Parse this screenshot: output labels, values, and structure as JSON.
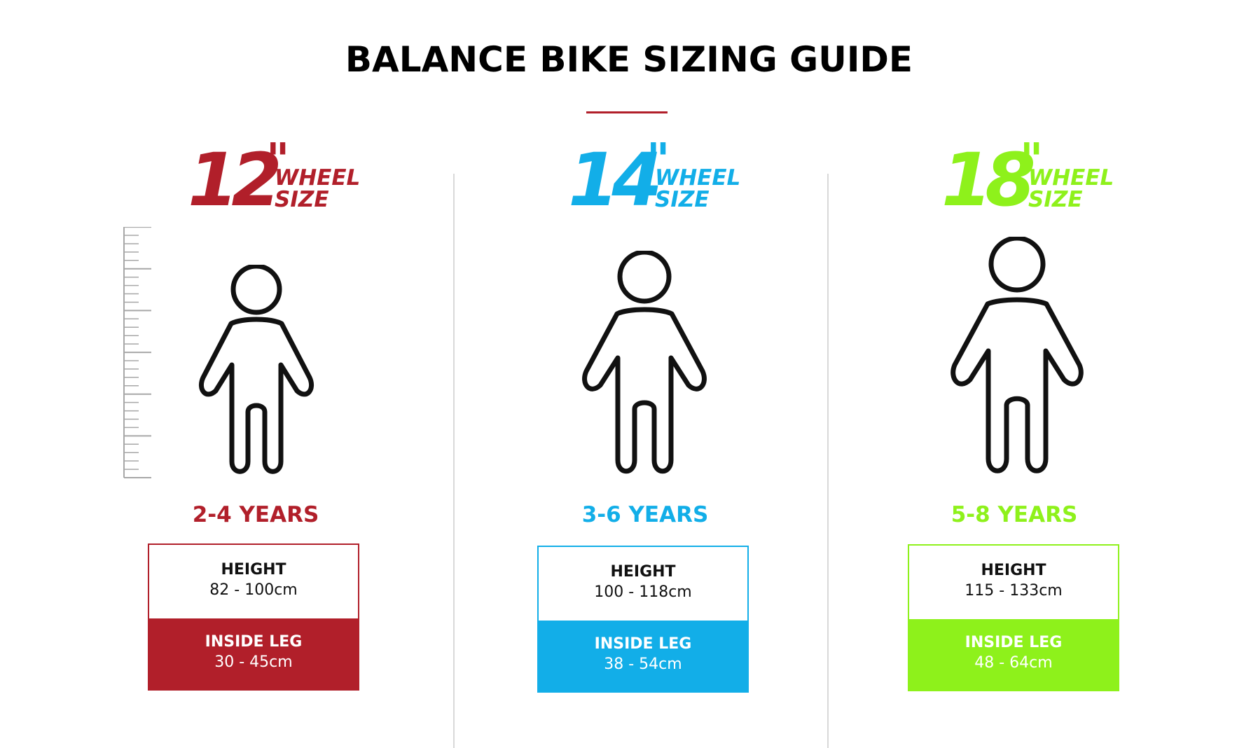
{
  "title": "BALANCE BIKE SIZING GUIDE",
  "colors": {
    "red": "#b11f2a",
    "blue": "#12aee8",
    "green": "#8ef11b",
    "divider": "#d9d9d9",
    "ruler": "#a7a7a7"
  },
  "icons": {
    "figure": "child-figure-icon",
    "ruler": "height-ruler-icon"
  },
  "sizes": [
    {
      "wheel_number": "12",
      "wheel_mark": "\"",
      "wheel_label_1": "WHEEL",
      "wheel_label_2": "SIZE",
      "age": "2-4 YEARS",
      "height_label": "HEIGHT",
      "height_value": "82 - 100cm",
      "inside_leg_label": "INSIDE LEG",
      "inside_leg_value": "30 - 45cm"
    },
    {
      "wheel_number": "14",
      "wheel_mark": "\"",
      "wheel_label_1": "WHEEL",
      "wheel_label_2": "SIZE",
      "age": "3-6 YEARS",
      "height_label": "HEIGHT",
      "height_value": "100 - 118cm",
      "inside_leg_label": "INSIDE LEG",
      "inside_leg_value": "38 - 54cm"
    },
    {
      "wheel_number": "18",
      "wheel_mark": "\"",
      "wheel_label_1": "WHEEL",
      "wheel_label_2": "SIZE",
      "age": "5-8 YEARS",
      "height_label": "HEIGHT",
      "height_value": "115 - 133cm",
      "inside_leg_label": "INSIDE LEG",
      "inside_leg_value": "48 - 64cm"
    }
  ]
}
